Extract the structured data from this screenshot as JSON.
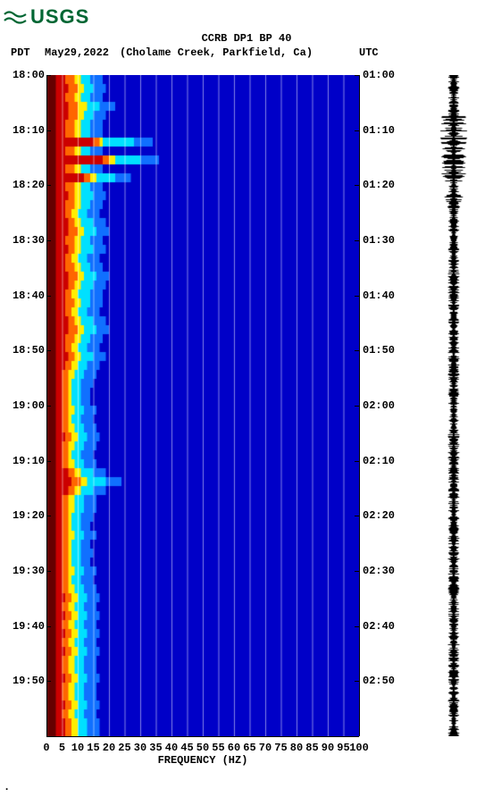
{
  "logo": {
    "text": "USGS",
    "color": "#006633"
  },
  "title": "CCRB DP1 BP 40",
  "header": {
    "pdt_label": "PDT",
    "date": "May29,2022",
    "location": "(Cholame Creek, Parkfield, Ca)",
    "utc_label": "UTC"
  },
  "xaxis": {
    "label": "FREQUENCY (HZ)",
    "min": 0,
    "max": 100,
    "step": 5,
    "ticks": [
      0,
      5,
      10,
      15,
      20,
      25,
      30,
      35,
      40,
      45,
      50,
      55,
      60,
      65,
      70,
      75,
      80,
      85,
      90,
      95,
      100
    ]
  },
  "left_axis": {
    "label": "PDT",
    "ticks": [
      "18:00",
      "18:10",
      "18:20",
      "18:30",
      "18:40",
      "18:50",
      "19:00",
      "19:10",
      "19:20",
      "19:30",
      "19:40",
      "19:50"
    ]
  },
  "right_axis": {
    "label": "UTC",
    "ticks": [
      "01:00",
      "01:10",
      "01:20",
      "01:30",
      "01:40",
      "01:50",
      "02:00",
      "02:10",
      "02:20",
      "02:30",
      "02:40",
      "02:50"
    ]
  },
  "spectrogram": {
    "width_hz": 100,
    "colors": {
      "darkred": "#660000",
      "red": "#cc0000",
      "orange": "#ff6600",
      "yellow": "#ffee00",
      "cyan": "#00e0ff",
      "lightblue": "#1070ff",
      "blue": "#0000c8",
      "gridline": "#ffffff"
    },
    "grid_vlines_hz": [
      5,
      10,
      15,
      20,
      25,
      30,
      35,
      40,
      45,
      50,
      55,
      60,
      65,
      70,
      75,
      80,
      85,
      90,
      95
    ],
    "rows": [
      {
        "edge": 11,
        "r": 6,
        "o": 9,
        "y": 11,
        "c": 14,
        "l": 18,
        "spikes": []
      },
      {
        "edge": 12,
        "r": 7,
        "o": 10,
        "y": 12,
        "c": 15,
        "l": 19,
        "spikes": []
      },
      {
        "edge": 11,
        "r": 6,
        "o": 9,
        "y": 11,
        "c": 14,
        "l": 18,
        "spikes": []
      },
      {
        "edge": 13,
        "r": 7,
        "o": 10,
        "y": 13,
        "c": 17,
        "l": 22,
        "spikes": []
      },
      {
        "edge": 12,
        "r": 7,
        "o": 10,
        "y": 12,
        "c": 15,
        "l": 19,
        "spikes": []
      },
      {
        "edge": 11,
        "r": 6,
        "o": 9,
        "y": 11,
        "c": 14,
        "l": 18,
        "spikes": []
      },
      {
        "edge": 11,
        "r": 6,
        "o": 9,
        "y": 11,
        "c": 14,
        "l": 18,
        "spikes": []
      },
      {
        "edge": 18,
        "r": 15,
        "o": 17,
        "y": 18,
        "c": 28,
        "l": 34,
        "spikes": []
      },
      {
        "edge": 11,
        "r": 6,
        "o": 9,
        "y": 11,
        "c": 14,
        "l": 18,
        "spikes": []
      },
      {
        "edge": 22,
        "r": 18,
        "o": 20,
        "y": 22,
        "c": 30,
        "l": 36,
        "spikes": []
      },
      {
        "edge": 11,
        "r": 6,
        "o": 9,
        "y": 11,
        "c": 14,
        "l": 18,
        "spikes": []
      },
      {
        "edge": 16,
        "r": 12,
        "o": 14,
        "y": 16,
        "c": 22,
        "l": 27,
        "spikes": []
      },
      {
        "edge": 11,
        "r": 6,
        "o": 9,
        "y": 11,
        "c": 14,
        "l": 18,
        "spikes": []
      },
      {
        "edge": 11,
        "r": 7,
        "o": 9,
        "y": 11,
        "c": 15,
        "l": 19,
        "spikes": []
      },
      {
        "edge": 11,
        "r": 6,
        "o": 9,
        "y": 11,
        "c": 14,
        "l": 18,
        "spikes": []
      },
      {
        "edge": 10,
        "r": 6,
        "o": 8,
        "y": 10,
        "c": 13,
        "l": 17,
        "spikes": []
      },
      {
        "edge": 11,
        "r": 7,
        "o": 9,
        "y": 11,
        "c": 15,
        "l": 19,
        "spikes": []
      },
      {
        "edge": 12,
        "r": 7,
        "o": 10,
        "y": 12,
        "c": 16,
        "l": 20,
        "spikes": []
      },
      {
        "edge": 11,
        "r": 6,
        "o": 9,
        "y": 11,
        "c": 14,
        "l": 18,
        "spikes": []
      },
      {
        "edge": 11,
        "r": 7,
        "o": 9,
        "y": 11,
        "c": 15,
        "l": 19,
        "spikes": []
      },
      {
        "edge": 10,
        "r": 6,
        "o": 8,
        "y": 10,
        "c": 13,
        "l": 17,
        "spikes": []
      },
      {
        "edge": 11,
        "r": 6,
        "o": 9,
        "y": 11,
        "c": 14,
        "l": 18,
        "spikes": []
      },
      {
        "edge": 12,
        "r": 7,
        "o": 10,
        "y": 12,
        "c": 16,
        "l": 20,
        "spikes": []
      },
      {
        "edge": 11,
        "r": 7,
        "o": 9,
        "y": 11,
        "c": 15,
        "l": 19,
        "spikes": []
      },
      {
        "edge": 10,
        "r": 6,
        "o": 8,
        "y": 10,
        "c": 14,
        "l": 18,
        "spikes": []
      },
      {
        "edge": 11,
        "r": 6,
        "o": 9,
        "y": 11,
        "c": 14,
        "l": 18,
        "spikes": []
      },
      {
        "edge": 10,
        "r": 6,
        "o": 8,
        "y": 10,
        "c": 13,
        "l": 17,
        "spikes": []
      },
      {
        "edge": 11,
        "r": 7,
        "o": 9,
        "y": 11,
        "c": 15,
        "l": 19,
        "spikes": []
      },
      {
        "edge": 12,
        "r": 7,
        "o": 10,
        "y": 12,
        "c": 16,
        "l": 20,
        "spikes": []
      },
      {
        "edge": 11,
        "r": 6,
        "o": 9,
        "y": 11,
        "c": 14,
        "l": 18,
        "spikes": []
      },
      {
        "edge": 10,
        "r": 6,
        "o": 8,
        "y": 10,
        "c": 13,
        "l": 17,
        "spikes": []
      },
      {
        "edge": 11,
        "r": 7,
        "o": 9,
        "y": 11,
        "c": 15,
        "l": 19,
        "spikes": []
      },
      {
        "edge": 10,
        "r": 6,
        "o": 8,
        "y": 10,
        "c": 13,
        "l": 17,
        "spikes": []
      },
      {
        "edge": 9,
        "r": 5,
        "o": 7,
        "y": 9,
        "c": 12,
        "l": 16,
        "spikes": []
      },
      {
        "edge": 8,
        "r": 5,
        "o": 7,
        "y": 8,
        "c": 11,
        "l": 15,
        "spikes": []
      },
      {
        "edge": 8,
        "r": 5,
        "o": 7,
        "y": 8,
        "c": 11,
        "l": 14,
        "spikes": []
      },
      {
        "edge": 8,
        "r": 5,
        "o": 7,
        "y": 8,
        "c": 11,
        "l": 14,
        "spikes": []
      },
      {
        "edge": 9,
        "r": 5,
        "o": 7,
        "y": 9,
        "c": 12,
        "l": 16,
        "spikes": []
      },
      {
        "edge": 8,
        "r": 5,
        "o": 7,
        "y": 8,
        "c": 11,
        "l": 15,
        "spikes": []
      },
      {
        "edge": 9,
        "r": 5,
        "o": 7,
        "y": 9,
        "c": 12,
        "l": 16,
        "spikes": []
      },
      {
        "edge": 10,
        "r": 6,
        "o": 8,
        "y": 10,
        "c": 13,
        "l": 17,
        "spikes": []
      },
      {
        "edge": 9,
        "r": 5,
        "o": 7,
        "y": 9,
        "c": 12,
        "l": 16,
        "spikes": []
      },
      {
        "edge": 8,
        "r": 5,
        "o": 7,
        "y": 8,
        "c": 11,
        "l": 15,
        "spikes": []
      },
      {
        "edge": 9,
        "r": 5,
        "o": 7,
        "y": 9,
        "c": 12,
        "l": 16,
        "spikes": []
      },
      {
        "edge": 11,
        "r": 7,
        "o": 9,
        "y": 11,
        "c": 15,
        "l": 19,
        "spikes": []
      },
      {
        "edge": 13,
        "r": 8,
        "o": 11,
        "y": 13,
        "c": 19,
        "l": 24,
        "spikes": []
      },
      {
        "edge": 11,
        "r": 7,
        "o": 9,
        "y": 11,
        "c": 15,
        "l": 19,
        "spikes": []
      },
      {
        "edge": 9,
        "r": 5,
        "o": 7,
        "y": 9,
        "c": 12,
        "l": 16,
        "spikes": []
      },
      {
        "edge": 9,
        "r": 5,
        "o": 7,
        "y": 9,
        "c": 12,
        "l": 16,
        "spikes": []
      },
      {
        "edge": 8,
        "r": 5,
        "o": 7,
        "y": 8,
        "c": 11,
        "l": 15,
        "spikes": []
      },
      {
        "edge": 8,
        "r": 5,
        "o": 7,
        "y": 8,
        "c": 11,
        "l": 14,
        "spikes": []
      },
      {
        "edge": 9,
        "r": 5,
        "o": 7,
        "y": 9,
        "c": 12,
        "l": 16,
        "spikes": []
      },
      {
        "edge": 8,
        "r": 5,
        "o": 7,
        "y": 8,
        "c": 11,
        "l": 14,
        "spikes": []
      },
      {
        "edge": 8,
        "r": 5,
        "o": 7,
        "y": 8,
        "c": 11,
        "l": 15,
        "spikes": []
      },
      {
        "edge": 8,
        "r": 5,
        "o": 7,
        "y": 8,
        "c": 11,
        "l": 14,
        "spikes": []
      },
      {
        "edge": 9,
        "r": 5,
        "o": 7,
        "y": 9,
        "c": 12,
        "l": 16,
        "spikes": []
      },
      {
        "edge": 8,
        "r": 5,
        "o": 7,
        "y": 8,
        "c": 11,
        "l": 15,
        "spikes": []
      },
      {
        "edge": 9,
        "r": 5,
        "o": 7,
        "y": 9,
        "c": 12,
        "l": 16,
        "spikes": []
      },
      {
        "edge": 10,
        "r": 6,
        "o": 8,
        "y": 10,
        "c": 13,
        "l": 17,
        "spikes": []
      },
      {
        "edge": 9,
        "r": 5,
        "o": 7,
        "y": 9,
        "c": 12,
        "l": 16,
        "spikes": []
      },
      {
        "edge": 10,
        "r": 6,
        "o": 8,
        "y": 10,
        "c": 13,
        "l": 17,
        "spikes": []
      },
      {
        "edge": 9,
        "r": 5,
        "o": 7,
        "y": 9,
        "c": 12,
        "l": 16,
        "spikes": []
      },
      {
        "edge": 10,
        "r": 6,
        "o": 8,
        "y": 10,
        "c": 13,
        "l": 17,
        "spikes": []
      },
      {
        "edge": 9,
        "r": 5,
        "o": 7,
        "y": 9,
        "c": 12,
        "l": 16,
        "spikes": []
      },
      {
        "edge": 10,
        "r": 6,
        "o": 8,
        "y": 10,
        "c": 13,
        "l": 17,
        "spikes": []
      },
      {
        "edge": 9,
        "r": 5,
        "o": 7,
        "y": 9,
        "c": 12,
        "l": 16,
        "spikes": []
      },
      {
        "edge": 9,
        "r": 5,
        "o": 7,
        "y": 9,
        "c": 12,
        "l": 16,
        "spikes": []
      },
      {
        "edge": 10,
        "r": 6,
        "o": 8,
        "y": 10,
        "c": 13,
        "l": 17,
        "spikes": []
      },
      {
        "edge": 9,
        "r": 5,
        "o": 7,
        "y": 9,
        "c": 12,
        "l": 16,
        "spikes": []
      },
      {
        "edge": 9,
        "r": 5,
        "o": 7,
        "y": 9,
        "c": 12,
        "l": 16,
        "spikes": []
      },
      {
        "edge": 10,
        "r": 6,
        "o": 8,
        "y": 10,
        "c": 13,
        "l": 17,
        "spikes": []
      },
      {
        "edge": 9,
        "r": 5,
        "o": 7,
        "y": 9,
        "c": 12,
        "l": 16,
        "spikes": []
      },
      {
        "edge": 10,
        "r": 6,
        "o": 8,
        "y": 10,
        "c": 13,
        "l": 17,
        "spikes": []
      },
      {
        "edge": 10,
        "r": 6,
        "o": 8,
        "y": 10,
        "c": 13,
        "l": 17,
        "spikes": []
      }
    ]
  },
  "trace": {
    "color": "#000000",
    "center": 0.5,
    "base_amp": 0.18,
    "burst_regions": [
      {
        "from": 0.06,
        "to": 0.16,
        "amp": 0.48
      },
      {
        "from": 0.18,
        "to": 0.2,
        "amp": 0.32
      }
    ]
  },
  "footer_mark": "."
}
